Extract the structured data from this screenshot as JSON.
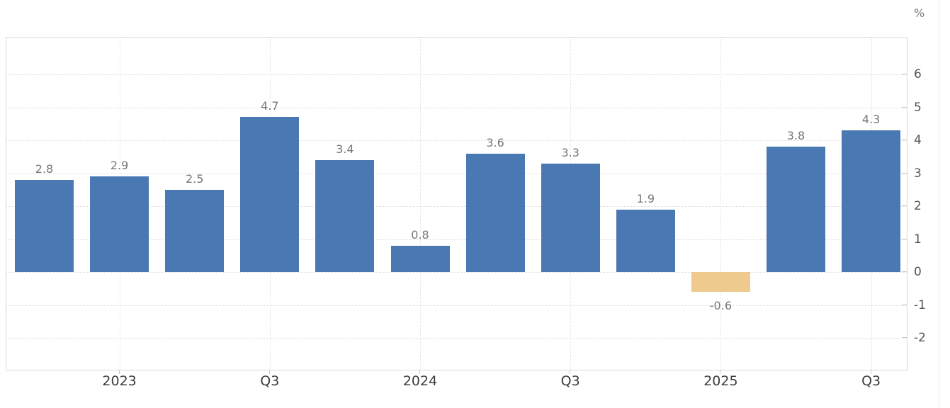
{
  "chart_data": {
    "type": "bar",
    "unit": "%",
    "values": [
      2.8,
      2.9,
      2.5,
      4.7,
      3.4,
      0.8,
      3.6,
      3.3,
      1.9,
      -0.6,
      3.8,
      4.3
    ],
    "bar_labels": [
      "2.8",
      "2.9",
      "2.5",
      "4.7",
      "3.4",
      "0.8",
      "3.6",
      "3.3",
      "1.9",
      "-0.6",
      "3.8",
      "4.3"
    ],
    "x_tick_labels": [
      {
        "bar_index": 1,
        "label": "2023"
      },
      {
        "bar_index": 3,
        "label": "Q3"
      },
      {
        "bar_index": 5,
        "label": "2024"
      },
      {
        "bar_index": 7,
        "label": "Q3"
      },
      {
        "bar_index": 9,
        "label": "2025"
      },
      {
        "bar_index": 11,
        "label": "Q3"
      }
    ],
    "y_ticks": [
      "6",
      "5",
      "4",
      "3",
      "2",
      "1",
      "0",
      "-1",
      "-2"
    ],
    "y_tick_values": [
      6,
      5,
      4,
      3,
      2,
      1,
      0,
      -1,
      -2
    ],
    "ylim": [
      -3,
      7.1
    ],
    "grid": "dotted",
    "legend": "none",
    "title": "",
    "xlabel": "",
    "ylabel": "",
    "colors": {
      "positive_bar": "#4a78b2",
      "negative_bar": "#eeca8f",
      "value_label": "#777777",
      "x_axis_label": "#3d3d3d",
      "y_axis_label": "#555555",
      "axis_border": "#dadada",
      "tick_mark": "#c9c9c9",
      "h_gridline": "#e6d8d8",
      "v_gridline": "#e2e2e2",
      "page_rule": "#e9e9e9",
      "background": "#ffffff"
    }
  }
}
